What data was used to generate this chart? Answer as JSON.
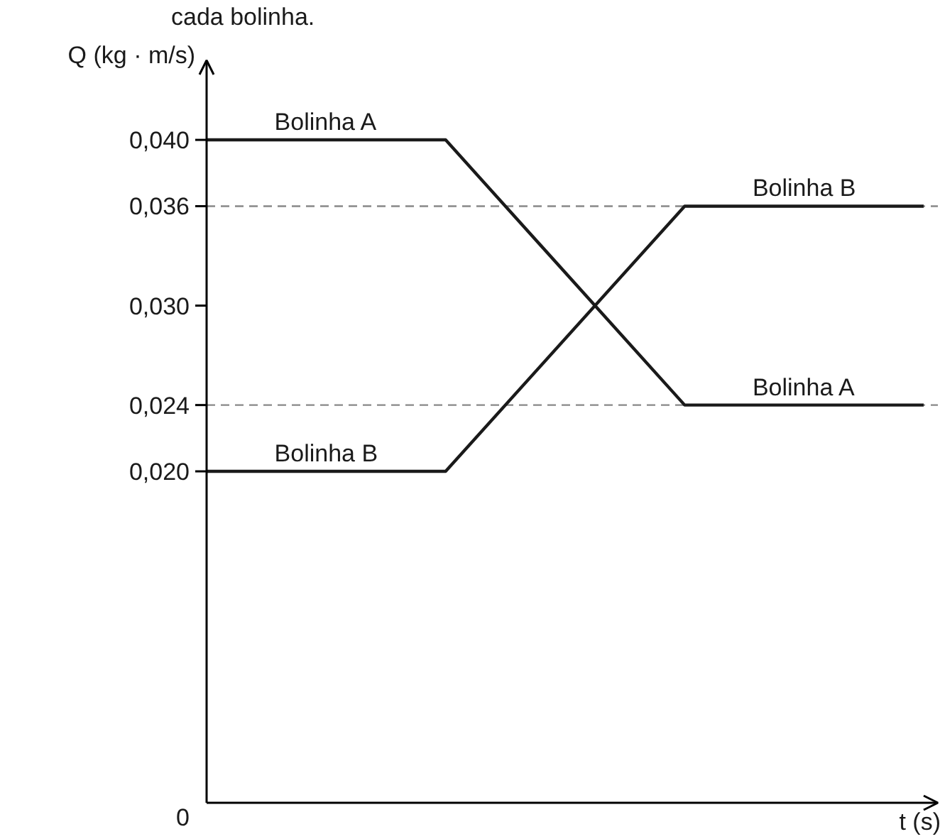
{
  "chart_data": {
    "type": "line",
    "xlabel": "t (s)",
    "ylabel": "Q (kg · m/s)",
    "categories": [
      null,
      null,
      null,
      null
    ],
    "series": [
      {
        "name": "Bolinha A",
        "color": "#1a1a1a",
        "values": [
          0.04,
          0.04,
          0.024,
          0.024
        ]
      },
      {
        "name": "Bolinha B",
        "color": "#1a1a1a",
        "values": [
          0.02,
          0.02,
          0.036,
          0.036
        ]
      }
    ],
    "ylim": [
      0,
      0.0448
    ],
    "yticks": [
      0,
      {
        "value": 0.02,
        "label": "0,020"
      },
      {
        "value": 0.024,
        "label": "0,024"
      },
      {
        "value": 0.03,
        "label": "0,030"
      },
      {
        "value": 0.036,
        "label": "0,036"
      },
      {
        "value": 0.04,
        "label": "0,040"
      }
    ],
    "ref_lines": [
      {
        "axis": "y",
        "value": 0.036,
        "color": "#888888",
        "line_style": "dashed"
      },
      {
        "axis": "y",
        "value": 0.024,
        "color": "#888888",
        "line_style": "dashed"
      }
    ],
    "annotations": [
      "cada bolinha."
    ],
    "grid": false,
    "marker": "none",
    "line_style": "solid"
  }
}
